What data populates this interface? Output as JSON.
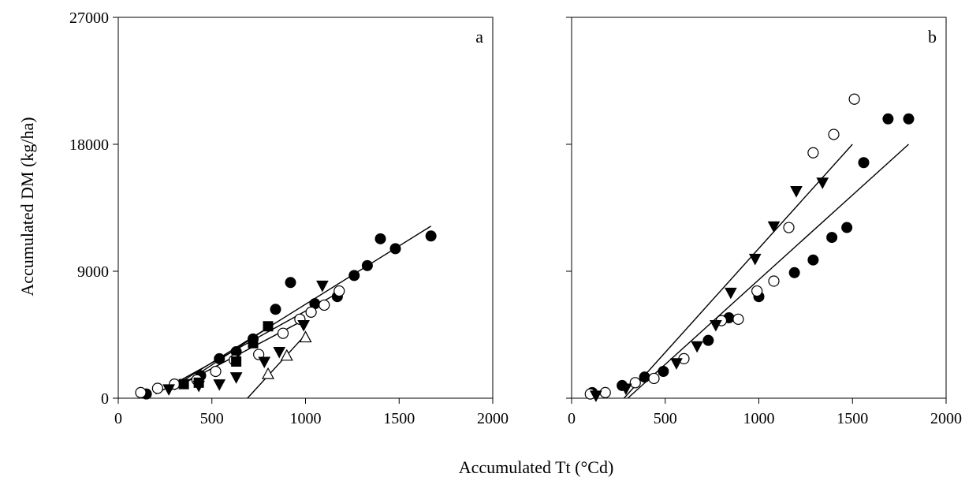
{
  "figure": {
    "ylabel": "Accumulated DM (kg/ha)",
    "xlabel": "Accumulated Tt (°Cd)"
  },
  "chart_data": [
    {
      "type": "scatter",
      "panel_label": "a",
      "xlim": [
        0,
        2000
      ],
      "ylim": [
        0,
        27000
      ],
      "x_ticks": [
        "0",
        "500",
        "1000",
        "1500",
        "2000"
      ],
      "y_ticks": [
        "0",
        "9000",
        "18000",
        "27000"
      ],
      "grid": false,
      "series": [
        {
          "marker": "filled-circle",
          "points": [
            [
              150,
              300
            ],
            [
              440,
              1600
            ],
            [
              540,
              2800
            ],
            [
              630,
              3300
            ],
            [
              720,
              4200
            ],
            [
              840,
              6300
            ],
            [
              920,
              8200
            ],
            [
              1050,
              6700
            ],
            [
              1170,
              7200
            ],
            [
              1260,
              8700
            ],
            [
              1330,
              9400
            ],
            [
              1400,
              11300
            ],
            [
              1480,
              10600
            ],
            [
              1670,
              11500
            ]
          ],
          "fit": [
            [
              280,
              700
            ],
            [
              1670,
              12200
            ]
          ]
        },
        {
          "marker": "open-circle",
          "points": [
            [
              120,
              400
            ],
            [
              210,
              700
            ],
            [
              300,
              1000
            ],
            [
              420,
              1300
            ],
            [
              520,
              1900
            ],
            [
              620,
              2700
            ],
            [
              750,
              3100
            ],
            [
              880,
              4600
            ],
            [
              970,
              5600
            ],
            [
              1030,
              6100
            ],
            [
              1100,
              6600
            ],
            [
              1180,
              7600
            ]
          ],
          "fit": [
            [
              200,
              300
            ],
            [
              1180,
              7500
            ]
          ]
        },
        {
          "marker": "filled-triangle-down",
          "points": [
            [
              270,
              650
            ],
            [
              430,
              900
            ],
            [
              540,
              1000
            ],
            [
              630,
              1500
            ],
            [
              780,
              2600
            ],
            [
              860,
              3300
            ],
            [
              990,
              5200
            ],
            [
              1090,
              8000
            ]
          ],
          "fit": [
            [
              270,
              500
            ],
            [
              1000,
              5600
            ]
          ]
        },
        {
          "marker": "filled-square",
          "points": [
            [
              350,
              1000
            ],
            [
              430,
              1100
            ],
            [
              630,
              2600
            ],
            [
              720,
              3900
            ],
            [
              800,
              5100
            ]
          ],
          "fit": [
            [
              300,
              600
            ],
            [
              800,
              5000
            ]
          ]
        },
        {
          "marker": "open-triangle-up",
          "points": [
            [
              800,
              1700
            ],
            [
              900,
              3000
            ],
            [
              1000,
              4300
            ]
          ],
          "fit": [
            [
              690,
              0
            ],
            [
              1000,
              4500
            ]
          ]
        }
      ]
    },
    {
      "type": "scatter",
      "panel_label": "b",
      "xlim": [
        0,
        2000
      ],
      "ylim": [
        0,
        27000
      ],
      "x_ticks": [
        "0",
        "500",
        "1000",
        "1500",
        "2000"
      ],
      "y_ticks": [],
      "grid": false,
      "series": [
        {
          "marker": "filled-circle",
          "points": [
            [
              110,
              400
            ],
            [
              270,
              900
            ],
            [
              390,
              1500
            ],
            [
              490,
              1900
            ],
            [
              730,
              4100
            ],
            [
              840,
              5700
            ],
            [
              1000,
              7200
            ],
            [
              1190,
              8900
            ],
            [
              1290,
              9800
            ],
            [
              1390,
              11400
            ],
            [
              1470,
              12100
            ],
            [
              1560,
              16700
            ],
            [
              1690,
              19800
            ],
            [
              1800,
              19800
            ]
          ],
          "fit": [
            [
              300,
              0
            ],
            [
              1800,
              18000
            ]
          ]
        },
        {
          "marker": "open-circle",
          "points": [
            [
              100,
              300
            ],
            [
              180,
              400
            ],
            [
              340,
              1100
            ],
            [
              440,
              1400
            ],
            [
              600,
              2800
            ],
            [
              800,
              5500
            ],
            [
              890,
              5600
            ],
            [
              990,
              7600
            ],
            [
              1080,
              8300
            ],
            [
              1160,
              12100
            ],
            [
              1290,
              17400
            ],
            [
              1400,
              18700
            ],
            [
              1510,
              21200
            ]
          ],
          "fit": null
        },
        {
          "marker": "filled-triangle-down",
          "points": [
            [
              130,
              200
            ],
            [
              290,
              700
            ],
            [
              560,
              2500
            ],
            [
              670,
              3700
            ],
            [
              770,
              5200
            ],
            [
              850,
              7500
            ],
            [
              980,
              9900
            ],
            [
              1080,
              12200
            ],
            [
              1200,
              14700
            ],
            [
              1340,
              15300
            ]
          ],
          "fit": [
            [
              280,
              0
            ],
            [
              1500,
              18000
            ]
          ]
        }
      ]
    }
  ]
}
